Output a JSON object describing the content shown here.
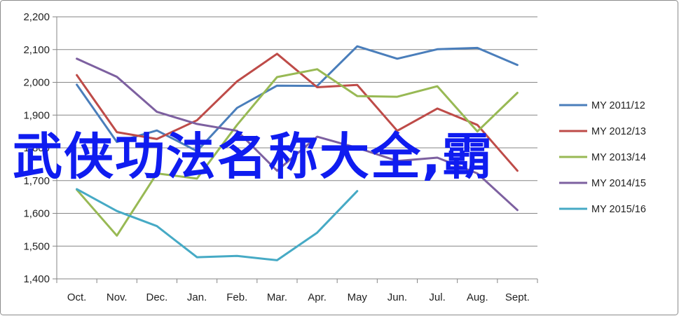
{
  "chart_data": {
    "type": "line",
    "categories": [
      "Oct.",
      "Nov.",
      "Dec.",
      "Jan.",
      "Feb.",
      "Mar.",
      "Apr.",
      "May",
      "Jun.",
      "Jul.",
      "Aug.",
      "Sept."
    ],
    "ylim": [
      1400,
      2200
    ],
    "yticks": [
      "1,400",
      "1,500",
      "1,600",
      "1,700",
      "1,800",
      "1,900",
      "2,000",
      "2,100",
      "2,200"
    ],
    "grid": true,
    "legend_position": "right",
    "series": [
      {
        "name": "MY 2011/12",
        "color": "#4a7ebb",
        "values": [
          1993,
          1818,
          1853,
          1790,
          1922,
          1990,
          1989,
          2110,
          2072,
          2101,
          2105,
          2053
        ]
      },
      {
        "name": "MY 2012/13",
        "color": "#be4b48",
        "values": [
          2022,
          1848,
          1827,
          1884,
          2003,
          2087,
          1985,
          1992,
          1852,
          1920,
          1870,
          1730
        ]
      },
      {
        "name": "MY 2013/14",
        "color": "#98b954",
        "values": [
          1672,
          1532,
          1722,
          1706,
          1870,
          2016,
          2040,
          1958,
          1956,
          1988,
          1850,
          1968
        ]
      },
      {
        "name": "MY 2014/15",
        "color": "#7d60a0",
        "values": [
          2072,
          2017,
          1910,
          1873,
          1852,
          1730,
          1834,
          1800,
          1760,
          1770,
          1722,
          1610
        ]
      },
      {
        "name": "MY 2015/16",
        "color": "#46aac5",
        "values": [
          1674,
          1607,
          1561,
          1466,
          1470,
          1457,
          1541,
          1668,
          null,
          null,
          null,
          null
        ]
      }
    ]
  },
  "overlay": {
    "text": "武侠功法名称大全,霸"
  }
}
